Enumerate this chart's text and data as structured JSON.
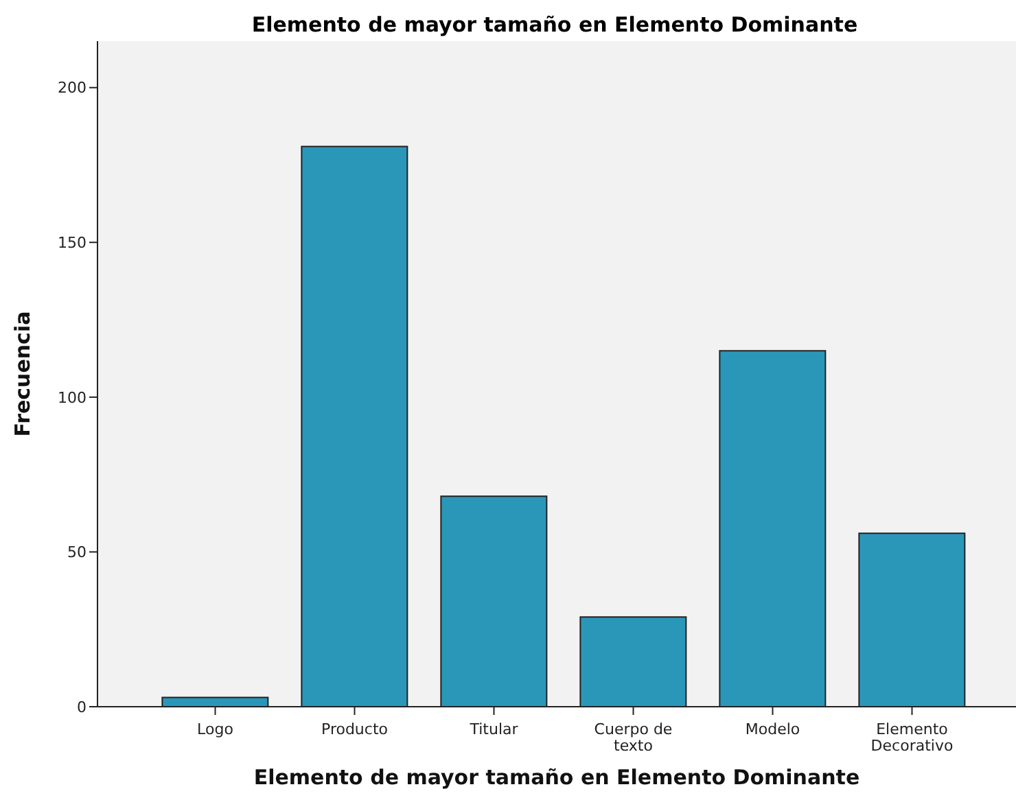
{
  "chart_data": {
    "type": "bar",
    "title": "Elemento de mayor tamaño en Elemento Dominante",
    "xlabel": "Elemento de mayor tamaño en Elemento Dominante",
    "ylabel": "Frecuencia",
    "categories": [
      "Logo",
      "Producto",
      "Titular",
      "Cuerpo de texto",
      "Modelo",
      "Elemento Decorativo"
    ],
    "values": [
      3,
      181,
      68,
      29,
      115,
      56
    ],
    "color": "#2a97b9",
    "ylim": [
      0,
      215
    ],
    "yticks": [
      0,
      50,
      100,
      150,
      200
    ]
  }
}
